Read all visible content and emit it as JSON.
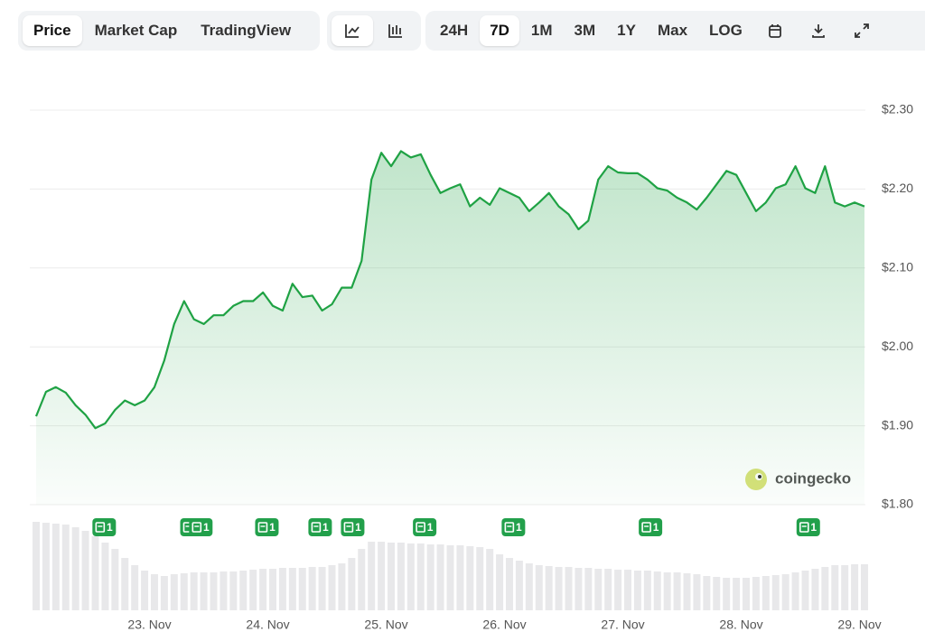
{
  "toolbar": {
    "views": [
      "Price",
      "Market Cap",
      "TradingView"
    ],
    "active_view": "Price",
    "ranges": [
      "24H",
      "7D",
      "1M",
      "3M",
      "1Y",
      "Max",
      "LOG"
    ],
    "active_range": "7D"
  },
  "watermark": "coingecko",
  "chart_data": {
    "type": "line",
    "xlim": [
      0,
      84
    ],
    "xticks": [
      {
        "value": 11.5,
        "label": "23. Nov"
      },
      {
        "value": 23.5,
        "label": "24. Nov"
      },
      {
        "value": 35.5,
        "label": "25. Nov"
      },
      {
        "value": 47.5,
        "label": "26. Nov"
      },
      {
        "value": 59.5,
        "label": "27. Nov"
      },
      {
        "value": 71.5,
        "label": "28. Nov"
      },
      {
        "value": 83.5,
        "label": "29. Nov"
      }
    ],
    "ylim": [
      1.8,
      2.3
    ],
    "yticks": [
      {
        "value": 1.8,
        "label": "$1.80"
      },
      {
        "value": 1.9,
        "label": "$1.90"
      },
      {
        "value": 2.0,
        "label": "$2.00"
      },
      {
        "value": 2.1,
        "label": "$2.10"
      },
      {
        "value": 2.2,
        "label": "$2.20"
      },
      {
        "value": 2.3,
        "label": "$2.30"
      }
    ],
    "y2lim": [
      0,
      100
    ],
    "grid": true,
    "series": [
      {
        "color": "#1fa244",
        "values": [
          1.912,
          1.943,
          1.949,
          1.942,
          1.926,
          1.914,
          1.897,
          1.903,
          1.92,
          1.932,
          1.926,
          1.932,
          1.949,
          1.983,
          2.029,
          2.058,
          2.035,
          2.029,
          2.04,
          2.04,
          2.052,
          2.058,
          2.058,
          2.069,
          2.052,
          2.046,
          2.08,
          2.063,
          2.065,
          2.046,
          2.054,
          2.075,
          2.075,
          2.109,
          2.212,
          2.246,
          2.229,
          2.248,
          2.24,
          2.244,
          2.218,
          2.195,
          2.201,
          2.206,
          2.178,
          2.189,
          2.18,
          2.201,
          2.195,
          2.189,
          2.172,
          2.183,
          2.195,
          2.178,
          2.168,
          2.149,
          2.16,
          2.212,
          2.229,
          2.221,
          2.22,
          2.22,
          2.212,
          2.201,
          2.198,
          2.189,
          2.183,
          2.174,
          2.189,
          2.206,
          2.223,
          2.218,
          2.195,
          2.172,
          2.183,
          2.201,
          2.206,
          2.229,
          2.201,
          2.195,
          2.229,
          2.183,
          2.178,
          2.183,
          2.178
        ]
      },
      {
        "axis": "y2",
        "color": "#e8e8ea",
        "values": [
          98,
          97,
          96,
          95,
          92,
          88,
          82,
          75,
          68,
          58,
          50,
          44,
          40,
          38,
          40,
          41,
          42,
          42,
          42,
          43,
          43,
          44,
          45,
          46,
          46,
          47,
          47,
          47,
          48,
          48,
          50,
          52,
          58,
          68,
          76,
          76,
          75,
          75,
          74,
          74,
          73,
          73,
          72,
          72,
          71,
          70,
          68,
          62,
          58,
          55,
          52,
          50,
          49,
          48,
          48,
          47,
          47,
          46,
          46,
          45,
          45,
          44,
          44,
          43,
          42,
          42,
          41,
          40,
          38,
          37,
          36,
          36,
          36,
          37,
          38,
          39,
          40,
          42,
          44,
          46,
          48,
          50,
          50,
          51,
          51
        ]
      }
    ],
    "events": {
      "color": "#22a04b",
      "x": [
        6.9,
        15.8,
        16.7,
        23.4,
        28.8,
        32.1,
        39.4,
        48.4,
        62.3,
        78.3
      ],
      "counts": [
        1,
        1,
        1,
        1,
        1,
        1,
        1,
        1,
        1,
        1
      ]
    }
  }
}
